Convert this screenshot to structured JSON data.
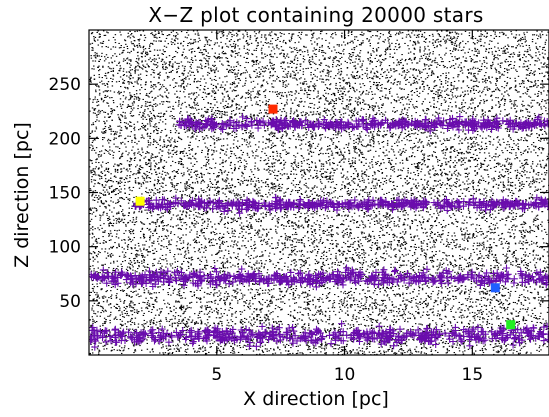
{
  "chart_data": {
    "type": "scatter",
    "title": "X−Z plot containing 20000 stars",
    "xlabel": "X direction [pc]",
    "ylabel": "Z direction [pc]",
    "xlim": [
      0,
      18
    ],
    "ylim": [
      0,
      300
    ],
    "xticks": [
      5,
      10,
      15
    ],
    "yticks": [
      50,
      100,
      150,
      200,
      250
    ],
    "x_tick_labels": [
      "5",
      "10",
      "15"
    ],
    "y_tick_labels": [
      "50",
      "100",
      "150",
      "200",
      "250"
    ],
    "grid": false,
    "legend": "none",
    "background_star_count": 20000,
    "colors": {
      "field_stars": "#000000",
      "cluster_stars": "#6a0dad",
      "marker_red": "#ff2a00",
      "marker_yellow": "#ffff00",
      "marker_blue": "#1f5fff",
      "marker_green": "#22ee22"
    },
    "series": [
      {
        "marker": "dot",
        "color": "#000000",
        "distribution": "uniform across the plot"
      },
      {
        "marker": "plus",
        "color": "#6a0dad",
        "bands": [
          {
            "z_center": 213,
            "z_spread": 6,
            "x_range": [
              3.5,
              18
            ]
          },
          {
            "z_center": 139,
            "z_spread": 6,
            "x_range": [
              1.8,
              18
            ]
          },
          {
            "z_center": 71,
            "z_spread": 8,
            "x_range": [
              0,
              18
            ]
          },
          {
            "z_center": 18,
            "z_spread": 9,
            "x_range": [
              0,
              18
            ]
          }
        ]
      }
    ],
    "highlighted_points": [
      {
        "name": "red",
        "x": 7.2,
        "y": 227,
        "color": "#ff2a00"
      },
      {
        "name": "yellow",
        "x": 2.0,
        "y": 142,
        "color": "#ffff00"
      },
      {
        "name": "blue",
        "x": 15.9,
        "y": 62,
        "color": "#1f5fff"
      },
      {
        "name": "green",
        "x": 16.5,
        "y": 28,
        "color": "#22ee22"
      }
    ]
  }
}
